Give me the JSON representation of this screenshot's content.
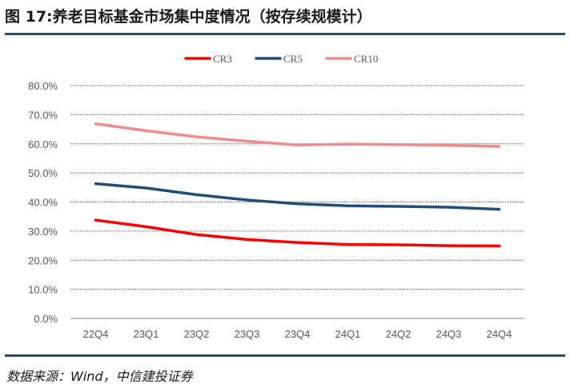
{
  "figure": {
    "title": "图 17:养老目标基金市场集中度情况（按存续规模计）",
    "source": "数据来源：Wind，中信建投证券"
  },
  "chart_data": {
    "type": "line",
    "title": "",
    "xlabel": "",
    "ylabel": "",
    "categories": [
      "22Q4",
      "23Q1",
      "23Q2",
      "23Q3",
      "23Q4",
      "24Q1",
      "24Q2",
      "24Q3",
      "24Q4"
    ],
    "yticks": [
      "0.0%",
      "10.0%",
      "20.0%",
      "30.0%",
      "40.0%",
      "50.0%",
      "60.0%",
      "70.0%",
      "80.0%"
    ],
    "ylim": [
      0,
      80
    ],
    "grid": true,
    "legend_position": "top-center",
    "series": [
      {
        "name": "CR3",
        "color": "#ff0000",
        "values": [
          33.8,
          31.5,
          28.8,
          27.1,
          26.1,
          25.4,
          25.3,
          25.0,
          24.9
        ]
      },
      {
        "name": "CR5",
        "color": "#1f4e79",
        "values": [
          46.3,
          44.8,
          42.5,
          40.7,
          39.4,
          38.7,
          38.5,
          38.2,
          37.5
        ]
      },
      {
        "name": "CR10",
        "color": "#f28b8b",
        "values": [
          66.9,
          64.5,
          62.4,
          60.9,
          59.6,
          59.9,
          59.7,
          59.5,
          59.1
        ]
      }
    ]
  }
}
